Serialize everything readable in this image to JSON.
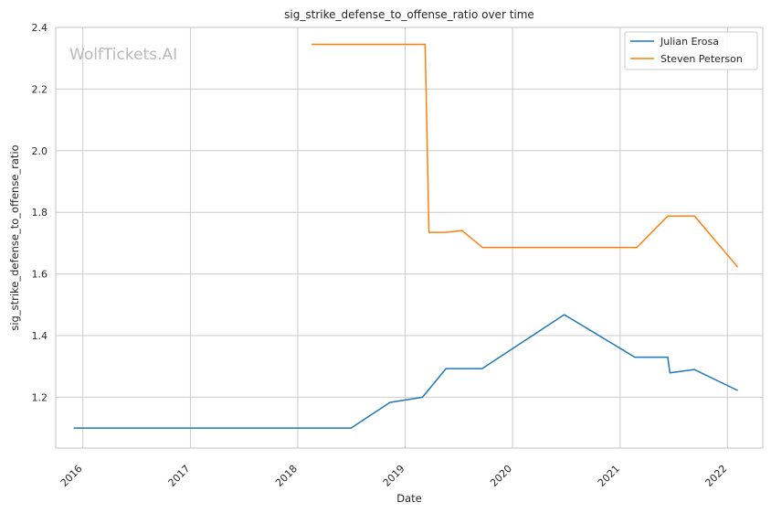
{
  "chart_data": {
    "type": "line",
    "title": "sig_strike_defense_to_offense_ratio over time",
    "xlabel": "Date",
    "ylabel": "sig_strike_defense_to_offense_ratio",
    "watermark": "WolfTickets.AI",
    "xlim": [
      "2015-10-01",
      "2022-05-01"
    ],
    "ylim": [
      1.035,
      2.4
    ],
    "x_ticks": [
      "2016-01-01",
      "2017-01-01",
      "2018-01-01",
      "2019-01-01",
      "2020-01-01",
      "2021-01-01",
      "2022-01-01"
    ],
    "x_tick_labels": [
      "2016",
      "2017",
      "2018",
      "2019",
      "2020",
      "2021",
      "2022"
    ],
    "y_ticks": [
      1.2,
      1.4,
      1.6,
      1.8,
      2.0,
      2.2,
      2.4
    ],
    "y_tick_labels": [
      "1.2",
      "1.4",
      "1.6",
      "1.8",
      "2.0",
      "2.2",
      "2.4"
    ],
    "grid": true,
    "legend_position": "top-right",
    "series": [
      {
        "name": "Julian Erosa",
        "color": "#1f77b4",
        "x": [
          "2015-12-01",
          "2018-07-01",
          "2018-11-10",
          "2019-03-01",
          "2019-05-20",
          "2019-09-20",
          "2020-06-25",
          "2021-02-20",
          "2021-06-12",
          "2021-06-19",
          "2021-09-10",
          "2022-02-05"
        ],
        "y": [
          1.1,
          1.1,
          1.183,
          1.2,
          1.293,
          1.293,
          1.468,
          1.33,
          1.33,
          1.279,
          1.29,
          1.222
        ]
      },
      {
        "name": "Steven Peterson",
        "color": "#ff7f0e",
        "x": [
          "2018-02-17",
          "2019-03-10",
          "2019-03-23",
          "2019-05-18",
          "2019-07-13",
          "2019-09-21",
          "2021-02-27",
          "2021-06-12",
          "2021-09-11",
          "2022-02-05"
        ],
        "y": [
          2.345,
          2.345,
          1.735,
          1.735,
          1.741,
          1.686,
          1.686,
          1.788,
          1.788,
          1.622
        ]
      }
    ]
  }
}
